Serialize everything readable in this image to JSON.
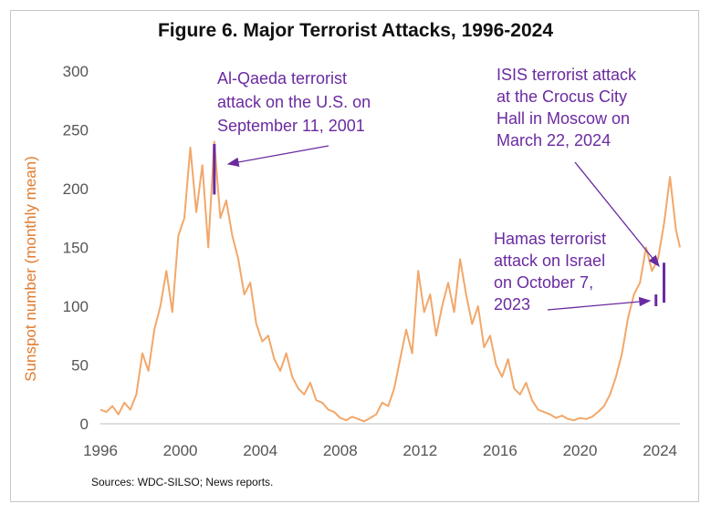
{
  "chart_data": {
    "type": "line",
    "title": "Figure 6. Major Terrorist Attacks, 1996-2024",
    "ylabel": "Sunspot number (monthly mean)",
    "xlabel": "",
    "xlim": [
      1996,
      2025
    ],
    "ylim": [
      0,
      300
    ],
    "xticks": [
      "1996",
      "2000",
      "2004",
      "2008",
      "2012",
      "2016",
      "2020",
      "2024"
    ],
    "yticks": [
      "0",
      "50",
      "100",
      "150",
      "200",
      "250",
      "300"
    ],
    "grid": false,
    "legend": "none",
    "line_color": "#f2a76a",
    "highlight_color": "#6a2aa0",
    "series": [
      {
        "x": [
          1996.0,
          1996.3,
          1996.6,
          1996.9,
          1997.2,
          1997.5,
          1997.8,
          1998.1,
          1998.4,
          1998.7,
          1999.0,
          1999.3,
          1999.6,
          1999.9,
          2000.2,
          2000.5,
          2000.8,
          2001.1,
          2001.4,
          2001.7,
          2002.0,
          2002.3,
          2002.6,
          2002.9,
          2003.2,
          2003.5,
          2003.8,
          2004.1,
          2004.4,
          2004.7,
          2005.0,
          2005.3,
          2005.6,
          2005.9,
          2006.2,
          2006.5,
          2006.8,
          2007.1,
          2007.4,
          2007.7,
          2008.0,
          2008.3,
          2008.6,
          2008.9,
          2009.2,
          2009.5,
          2009.8,
          2010.1,
          2010.4,
          2010.7,
          2011.0,
          2011.3,
          2011.6,
          2011.9,
          2012.2,
          2012.5,
          2012.8,
          2013.1,
          2013.4,
          2013.7,
          2014.0,
          2014.3,
          2014.6,
          2014.9,
          2015.2,
          2015.5,
          2015.8,
          2016.1,
          2016.4,
          2016.7,
          2017.0,
          2017.3,
          2017.6,
          2017.9,
          2018.2,
          2018.5,
          2018.8,
          2019.1,
          2019.4,
          2019.7,
          2020.0,
          2020.3,
          2020.6,
          2020.9,
          2021.2,
          2021.5,
          2021.8,
          2022.1,
          2022.4,
          2022.7,
          2023.0,
          2023.3,
          2023.6,
          2023.9,
          2024.2,
          2024.5,
          2024.8,
          2025.0
        ],
        "y": [
          12,
          10,
          15,
          8,
          18,
          12,
          25,
          60,
          45,
          80,
          100,
          130,
          95,
          160,
          175,
          235,
          180,
          220,
          150,
          240,
          175,
          190,
          160,
          140,
          110,
          120,
          85,
          70,
          75,
          55,
          45,
          60,
          40,
          30,
          25,
          35,
          20,
          18,
          12,
          10,
          5,
          3,
          6,
          4,
          2,
          5,
          8,
          18,
          15,
          30,
          55,
          80,
          60,
          130,
          95,
          110,
          75,
          100,
          120,
          95,
          140,
          110,
          85,
          100,
          65,
          75,
          50,
          40,
          55,
          30,
          25,
          35,
          20,
          12,
          10,
          8,
          5,
          7,
          4,
          3,
          5,
          4,
          6,
          10,
          15,
          25,
          40,
          60,
          90,
          110,
          120,
          150,
          130,
          140,
          170,
          210,
          165,
          150
        ],
        "name": ""
      }
    ],
    "annotations": [
      {
        "text_lines": [
          "Al-Qaeda terrorist",
          "attack on the U.S. on",
          "September 11, 2001"
        ],
        "x": 2001.7,
        "y_top": 238,
        "y_bottom": 195
      },
      {
        "text_lines": [
          "ISIS terrorist attack",
          "at the Crocus City",
          "Hall in Moscow on",
          "March 22, 2024"
        ],
        "x": 2024.2,
        "y_top": 137,
        "y_bottom": 103
      },
      {
        "text_lines": [
          "Hamas terrorist",
          "attack on Israel",
          "on October 7,",
          "2023"
        ],
        "x": 2023.8,
        "y_top": 110,
        "y_bottom": 100
      }
    ]
  },
  "source": "Sources:  WDC-SILSO; News reports."
}
